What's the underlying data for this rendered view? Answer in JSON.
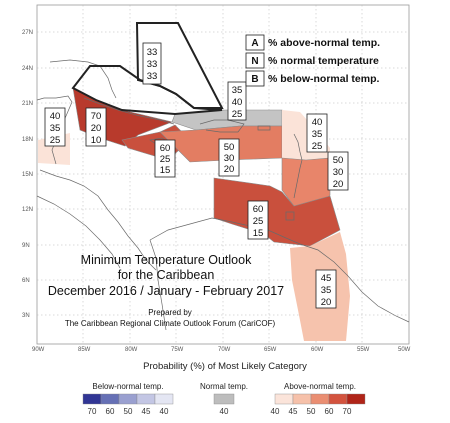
{
  "legend": {
    "above": {
      "key": "A",
      "text": "% above-normal temp."
    },
    "normal": {
      "key": "N",
      "text": "% normal temperature"
    },
    "below": {
      "key": "B",
      "text": "% below-normal temp."
    }
  },
  "title": {
    "line1": "Minimum Temperature Outlook",
    "line2": "for the Caribbean",
    "line3": "December 2016 / January - February 2017"
  },
  "credit": {
    "line1": "Prepared by",
    "line2": "The Caribbean Regional Climate Outlook Forum (CariCOF)"
  },
  "axes": {
    "lat_labels": [
      "27N",
      "24N",
      "21N",
      "18N",
      "15N",
      "12N",
      "9N",
      "6N",
      "3N"
    ],
    "lon_labels": [
      "90W",
      "85W",
      "80W",
      "75W",
      "70W",
      "65W",
      "60W",
      "55W",
      "50W"
    ]
  },
  "regions": [
    {
      "id": "bahamas",
      "above": "33",
      "normal": "33",
      "below": "33",
      "fill": "#ffffff"
    },
    {
      "id": "cuba-west",
      "above": "70",
      "normal": "20",
      "below": "10",
      "fill": "#b83a2c"
    },
    {
      "id": "belize",
      "above": "40",
      "normal": "35",
      "below": "25",
      "fill": "#fbe3d8"
    },
    {
      "id": "cuba-east",
      "above": "60",
      "normal": "25",
      "below": "15",
      "fill": "#c9503d"
    },
    {
      "id": "hispaniola",
      "above": "35",
      "normal": "40",
      "below": "25",
      "fill": "#c4c4c4"
    },
    {
      "id": "jamaica-south",
      "above": "50",
      "normal": "30",
      "below": "20",
      "fill": "#e37d62"
    },
    {
      "id": "lesser-antilles-north",
      "above": "40",
      "normal": "35",
      "below": "25",
      "fill": "#fbe3d8"
    },
    {
      "id": "lesser-antilles-east",
      "above": "50",
      "normal": "30",
      "below": "20",
      "fill": "#e8856a"
    },
    {
      "id": "trinidad-venezuela",
      "above": "60",
      "normal": "25",
      "below": "15",
      "fill": "#c9503d"
    },
    {
      "id": "guianas",
      "above": "45",
      "normal": "35",
      "below": "20",
      "fill": "#f6c3ad"
    }
  ],
  "scale": {
    "title": "Probability (%) of Most Likely Category",
    "below": {
      "label": "Below-normal temp.",
      "values": [
        "70",
        "60",
        "50",
        "45",
        "40"
      ],
      "colors": [
        "#313695",
        "#6670b5",
        "#9aa0d0",
        "#c3c6e4",
        "#e4e6f3"
      ]
    },
    "normal": {
      "label": "Normal temp.",
      "values": [
        "40"
      ],
      "colors": [
        "#bdbdbd"
      ]
    },
    "above": {
      "label": "Above-normal temp.",
      "values": [
        "40",
        "45",
        "50",
        "60",
        "70"
      ],
      "colors": [
        "#fbe4da",
        "#f6c1aa",
        "#ea8e72",
        "#d3533e",
        "#b02418"
      ]
    }
  }
}
